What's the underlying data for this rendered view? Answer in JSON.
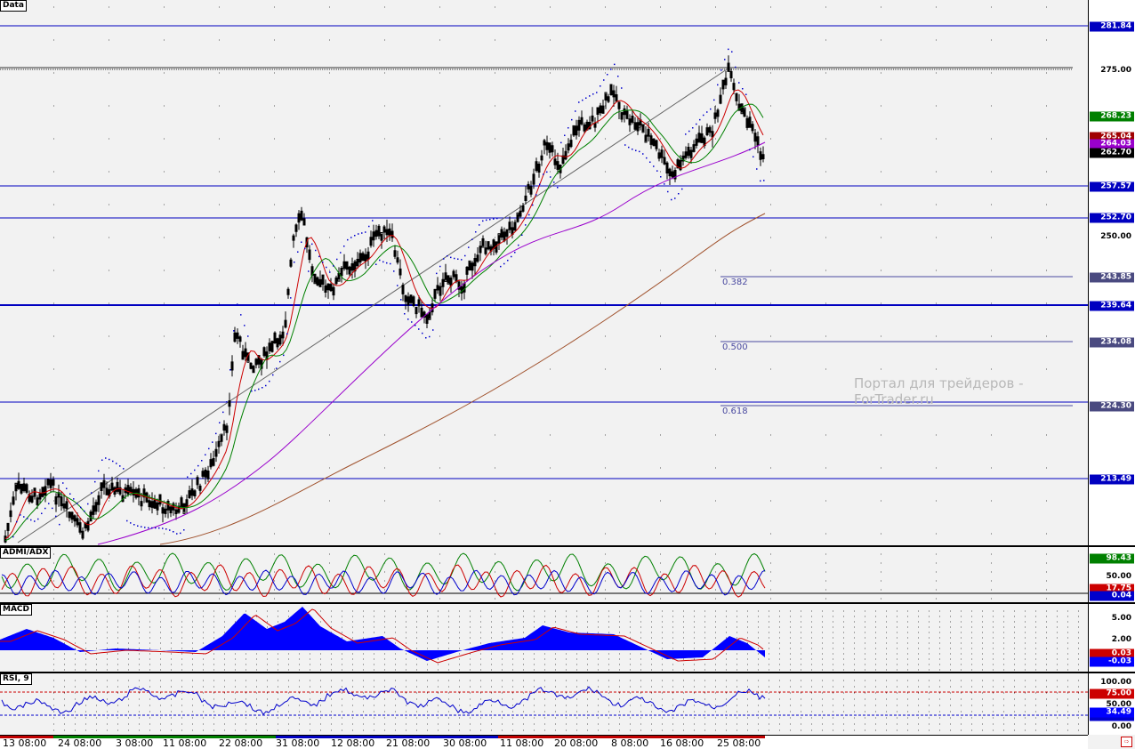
{
  "panes": {
    "main_label": "Data",
    "adx_label": "ADMI/ADX",
    "macd_label": "MACD",
    "rsi_label": "RSI, 9"
  },
  "watermark": "Портал для трейдеров - ForTrader.ru",
  "fib_labels": [
    "0.382",
    "0.500",
    "0.618"
  ],
  "price_axis": {
    "ticks": [
      "275.00",
      "250.00"
    ],
    "horizontal_levels": [
      "281.84",
      "257.57",
      "252.70",
      "239.64",
      "213.49"
    ],
    "fib_tags": [
      "243.85",
      "234.08",
      "224.30"
    ],
    "current": {
      "ma_fast": "268.23",
      "ma_red": "265.04",
      "ma_purple": "264.03",
      "price": "262.70"
    }
  },
  "adx_axis": {
    "ticks": [
      "50.00"
    ],
    "tags": {
      "green": "98.43",
      "red": "17.75",
      "blue": "0.04"
    }
  },
  "macd_axis": {
    "ticks": [
      "5.00",
      "2.00"
    ],
    "tags": {
      "red": "0.03",
      "blue": "-0.03"
    }
  },
  "rsi_axis": {
    "ticks": [
      "100.00",
      "50.00",
      "0.00"
    ],
    "tags": {
      "red": "75.00",
      "blue": "34.49",
      "hidden": "25.00"
    }
  },
  "x_labels": [
    "13 08:00",
    "24 08:00",
    "3 08:00",
    "11 08:00",
    "22 08:00",
    "31 08:00",
    "12 08:00",
    "21 08:00",
    "30 08:00",
    "11 08:00",
    "20 08:00",
    "8 08:00",
    "16 08:00",
    "25 08:00"
  ],
  "colors": {
    "background": "#f2f2f2",
    "level_line": "#0000c0",
    "candle": "#000000",
    "ma_red": "#cc0000",
    "ma_green": "#008000",
    "ma_purple": "#9900cc",
    "ma_brown": "#a0522d",
    "psar": "#0000cc",
    "macd_hist": "#0000ff",
    "signal": "#cc0000"
  }
}
